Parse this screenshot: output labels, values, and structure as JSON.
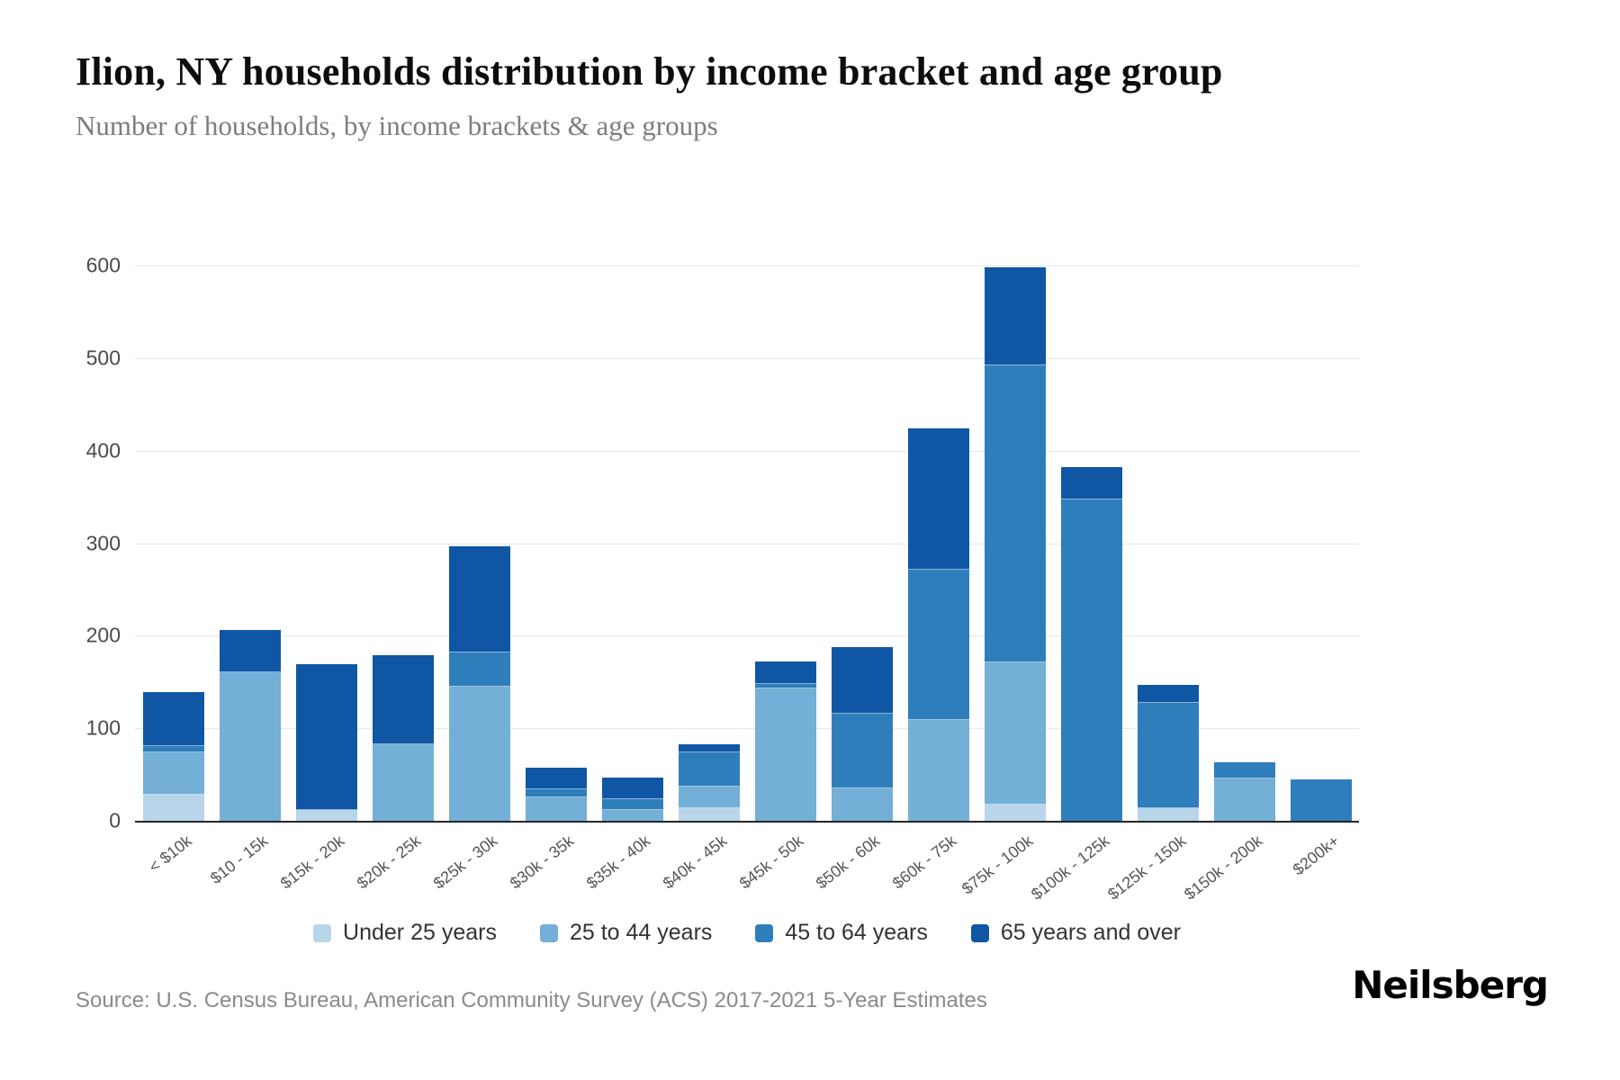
{
  "header": {
    "title": "Ilion, NY households distribution by income bracket and age group",
    "subtitle": "Number of households, by income brackets & age groups"
  },
  "footer": {
    "source": "Source: U.S. Census Bureau, American Community Survey (ACS) 2017-2021 5-Year Estimates",
    "brand": "Neilsberg"
  },
  "chart_data": {
    "type": "bar",
    "stacked": true,
    "title": "Ilion, NY households distribution by income bracket and age group",
    "xlabel": "",
    "ylabel": "Number of households",
    "ylim": [
      0,
      600
    ],
    "yticks": [
      0,
      100,
      200,
      300,
      400,
      500,
      600
    ],
    "grid": "horizontal",
    "legend_position": "bottom",
    "categories": [
      "< $10k",
      "$10 - 15k",
      "$15k - 20k",
      "$20k - 25k",
      "$25k - 30k",
      "$30k - 35k",
      "$35k - 40k",
      "$40k - 45k",
      "$45k - 50k",
      "$50k - 60k",
      "$60k - 75k",
      "$75k - 100k",
      "$100k - 125k",
      "$125k - 150k",
      "$150k - 200k",
      "$200k+"
    ],
    "series": [
      {
        "name": "Under 25 years",
        "color": "#b8d5ea",
        "values": [
          28,
          0,
          12,
          0,
          0,
          0,
          0,
          14,
          0,
          0,
          0,
          18,
          0,
          14,
          0,
          0
        ]
      },
      {
        "name": "25 to 44 years",
        "color": "#73afd6",
        "values": [
          45,
          160,
          0,
          83,
          145,
          25,
          12,
          22,
          143,
          35,
          109,
          152,
          0,
          0,
          46,
          0
        ]
      },
      {
        "name": "45 to 64 years",
        "color": "#2e7ebc",
        "values": [
          6,
          0,
          0,
          0,
          36,
          8,
          10,
          36,
          4,
          80,
          161,
          320,
          347,
          112,
          16,
          45
        ]
      },
      {
        "name": "65 years and over",
        "color": "#0f57a4",
        "values": [
          57,
          45,
          156,
          95,
          114,
          22,
          23,
          8,
          23,
          71,
          152,
          105,
          34,
          19,
          0,
          0
        ]
      }
    ]
  }
}
